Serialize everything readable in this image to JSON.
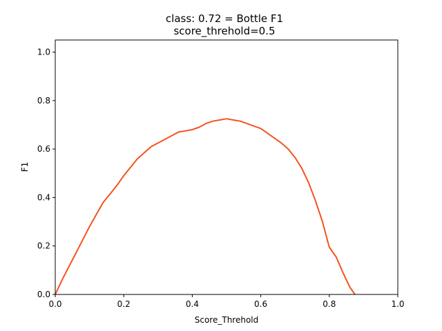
{
  "chart_data": {
    "type": "line",
    "title": "class: 0.72 = Bottle F1",
    "subtitle": "score_threhold=0.5",
    "xlabel": "Score_Threhold",
    "ylabel": "F1",
    "xlim": [
      0.0,
      1.0
    ],
    "ylim": [
      0.0,
      1.05
    ],
    "xticks": [
      "0.0",
      "0.2",
      "0.4",
      "0.6",
      "0.8",
      "1.0"
    ],
    "yticks": [
      "0.0",
      "0.2",
      "0.4",
      "0.6",
      "0.8",
      "1.0"
    ],
    "grid": false,
    "series": [
      {
        "color": "#f4511e",
        "x": [
          0.0,
          0.02,
          0.04,
          0.06,
          0.08,
          0.1,
          0.12,
          0.14,
          0.16,
          0.18,
          0.2,
          0.22,
          0.24,
          0.26,
          0.28,
          0.3,
          0.32,
          0.34,
          0.36,
          0.38,
          0.4,
          0.42,
          0.44,
          0.46,
          0.48,
          0.5,
          0.52,
          0.54,
          0.56,
          0.58,
          0.6,
          0.62,
          0.64,
          0.66,
          0.68,
          0.7,
          0.72,
          0.74,
          0.76,
          0.78,
          0.8,
          0.82,
          0.84,
          0.86,
          0.875
        ],
        "y": [
          0.0,
          0.06,
          0.115,
          0.17,
          0.225,
          0.28,
          0.33,
          0.38,
          0.415,
          0.45,
          0.49,
          0.525,
          0.56,
          0.585,
          0.61,
          0.625,
          0.64,
          0.655,
          0.67,
          0.675,
          0.68,
          0.69,
          0.705,
          0.715,
          0.72,
          0.725,
          0.72,
          0.715,
          0.705,
          0.695,
          0.685,
          0.665,
          0.645,
          0.625,
          0.6,
          0.565,
          0.52,
          0.46,
          0.385,
          0.3,
          0.195,
          0.155,
          0.09,
          0.03,
          0.0
        ]
      }
    ]
  }
}
